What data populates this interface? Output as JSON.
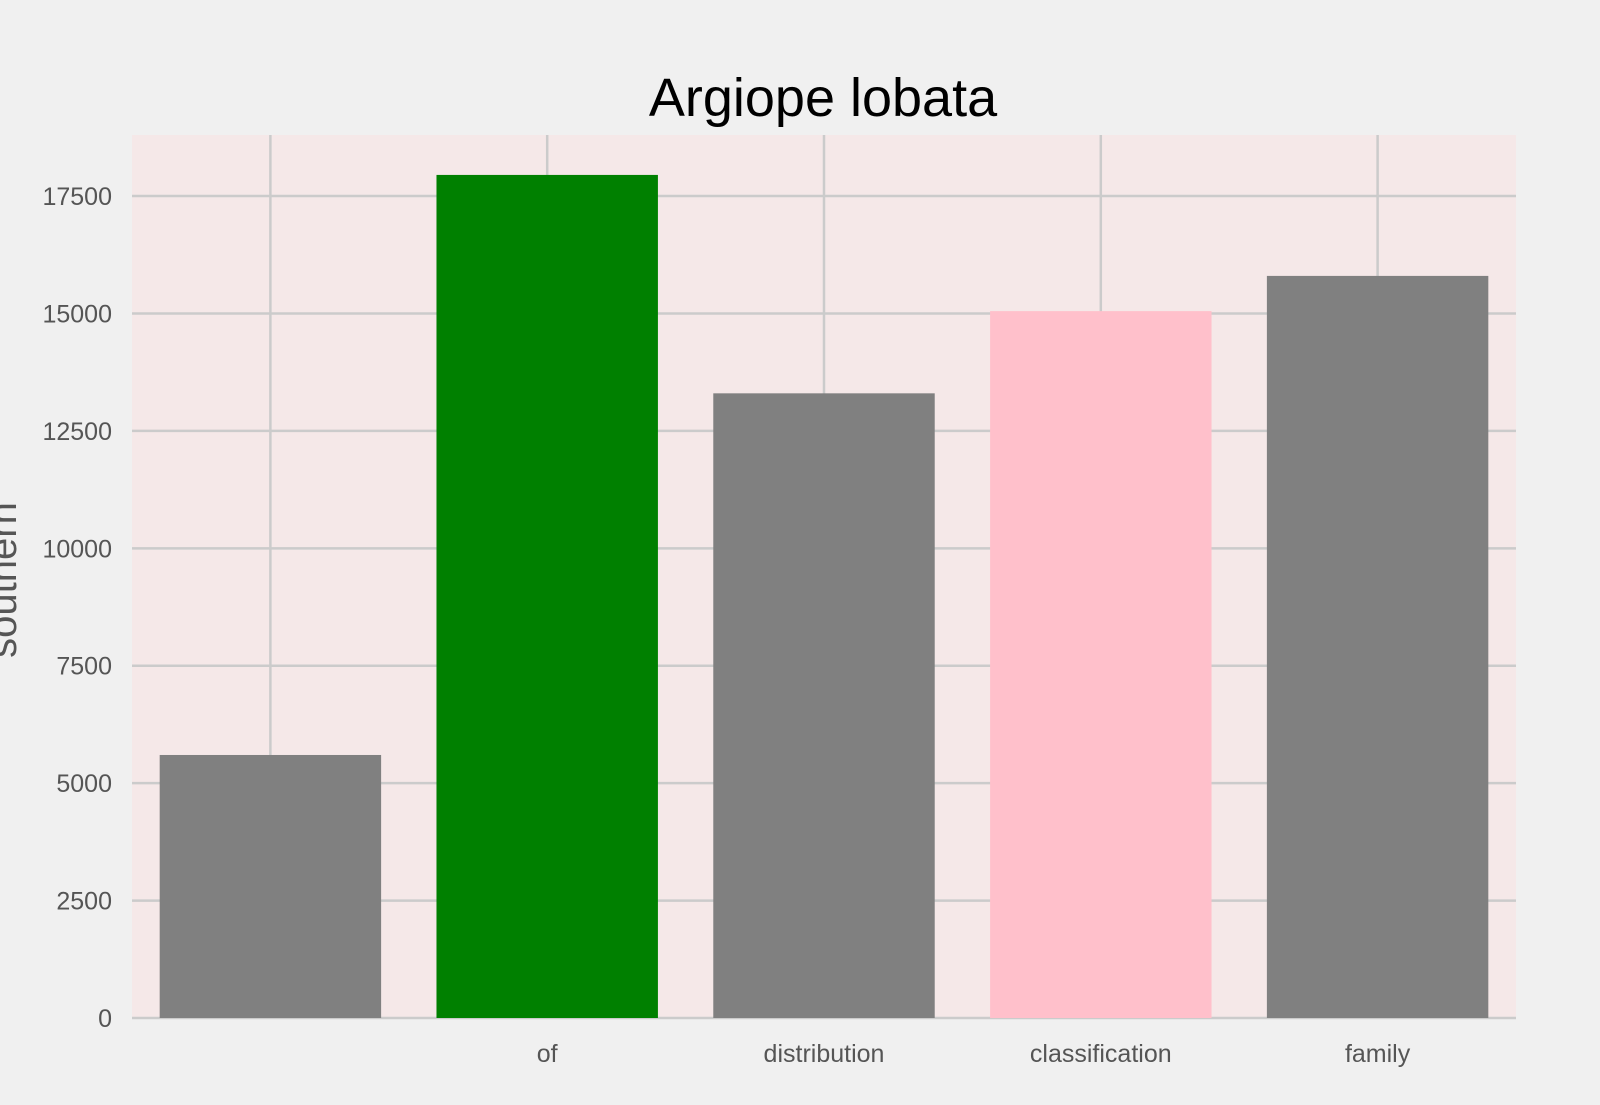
{
  "chart_data": {
    "type": "bar",
    "title": "Argiope lobata",
    "xlabel": "",
    "ylabel": "southern",
    "categories": [
      "",
      "of",
      "distribution",
      "classification",
      "family"
    ],
    "values": [
      5600,
      17950,
      13300,
      15050,
      15800
    ],
    "bar_colors": [
      "#808080",
      "#008000",
      "#808080",
      "#ffc0cb",
      "#808080"
    ],
    "ylim": [
      0,
      18800
    ],
    "yticks": [
      0,
      2500,
      5000,
      7500,
      10000,
      12500,
      15000,
      17500
    ],
    "grid": true,
    "plot_background": "#f5e8e8",
    "figure_background": "#f0f0f0"
  }
}
